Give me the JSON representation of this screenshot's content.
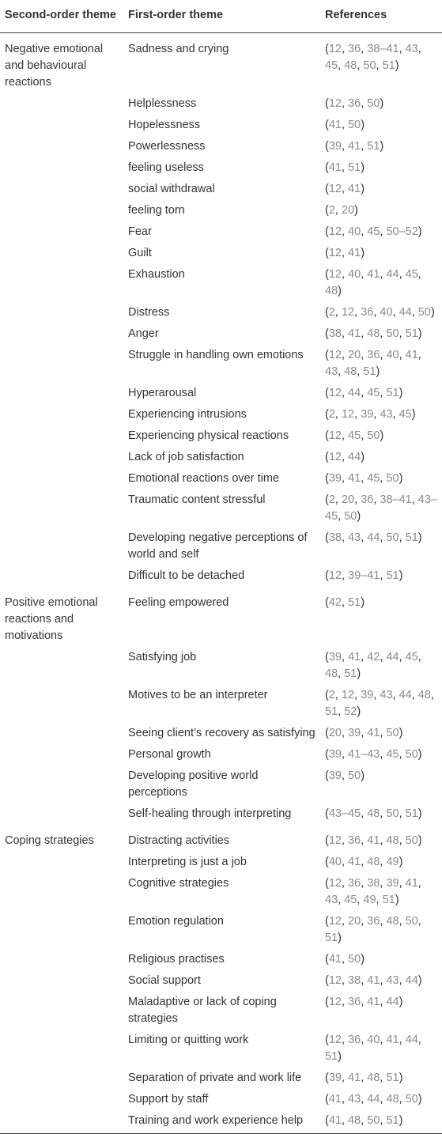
{
  "headers": {
    "second_order": "Second-order theme",
    "first_order": "First-order theme",
    "references": "References"
  },
  "groups": [
    {
      "theme": "Negative emotional and behavioural reactions",
      "rows": [
        {
          "first": "Sadness and crying",
          "refs": [
            "12",
            "36",
            "38–41",
            "43",
            "45",
            "48",
            "50",
            "51"
          ]
        },
        {
          "first": "Helplessness",
          "refs": [
            "12",
            "36",
            "50"
          ]
        },
        {
          "first": "Hopelessness",
          "refs": [
            "41",
            "50"
          ]
        },
        {
          "first": "Powerlessness",
          "refs": [
            "39",
            "41",
            "51"
          ]
        },
        {
          "first": "feeling useless",
          "refs": [
            "41",
            "51"
          ]
        },
        {
          "first": "social withdrawal",
          "refs": [
            "12",
            "41"
          ]
        },
        {
          "first": "feeling torn",
          "refs": [
            "2",
            "20"
          ]
        },
        {
          "first": "Fear",
          "refs": [
            "12",
            "40",
            "45",
            "50–52"
          ]
        },
        {
          "first": "Guilt",
          "refs": [
            "12",
            "41"
          ]
        },
        {
          "first": "Exhaustion",
          "refs": [
            "12",
            "40",
            "41",
            "44",
            "45",
            "48"
          ]
        },
        {
          "first": "Distress",
          "refs": [
            "2",
            "12",
            "36",
            "40",
            "44",
            "50"
          ]
        },
        {
          "first": "Anger",
          "refs": [
            "38",
            "41",
            "48",
            "50",
            "51"
          ]
        },
        {
          "first": "Struggle in handling own emotions",
          "refs": [
            "12",
            "20",
            "36",
            "40",
            "41",
            "43",
            "48",
            "51"
          ]
        },
        {
          "first": "Hyperarousal",
          "refs": [
            "12",
            "44",
            "45",
            "51"
          ]
        },
        {
          "first": "Experiencing intrusions",
          "refs": [
            "2",
            "12",
            "39",
            "43",
            "45"
          ]
        },
        {
          "first": "Experiencing physical reactions",
          "refs": [
            "12",
            "45",
            "50"
          ]
        },
        {
          "first": "Lack of job satisfaction",
          "refs": [
            "12",
            "44"
          ]
        },
        {
          "first": "Emotional reactions over time",
          "refs": [
            "39",
            "41",
            "45",
            "50"
          ]
        },
        {
          "first": "Traumatic content stressful",
          "refs": [
            "2",
            "20",
            "36",
            "38–41",
            "43–45",
            "50"
          ]
        },
        {
          "first": "Developing negative perceptions of world and self",
          "refs": [
            "38",
            "43",
            "44",
            "50",
            "51"
          ]
        },
        {
          "first": "Difficult to be detached",
          "refs": [
            "12",
            "39–41",
            "51"
          ]
        }
      ]
    },
    {
      "theme": "Positive emotional reactions and motivations",
      "rows": [
        {
          "first": "Feeling empowered",
          "refs": [
            "42",
            "51"
          ]
        },
        {
          "first": "Satisfying job",
          "refs": [
            "39",
            "41",
            "42",
            "44",
            "45",
            "48",
            "51"
          ]
        },
        {
          "first": "Motives to be an interpreter",
          "refs": [
            "2",
            "12",
            "39",
            "43",
            "44",
            "48",
            "51",
            "52"
          ]
        },
        {
          "first": "Seeing client’s recovery as satisfying",
          "refs": [
            "20",
            "39",
            "41",
            "50"
          ]
        },
        {
          "first": "Personal growth",
          "refs": [
            "39",
            "41–43",
            "45",
            "50"
          ]
        },
        {
          "first": "Developing positive world perceptions",
          "refs": [
            "39",
            "50"
          ]
        },
        {
          "first": "Self-healing through interpreting",
          "refs": [
            "43–45",
            "48",
            "50",
            "51"
          ]
        }
      ]
    },
    {
      "theme": "Coping strategies",
      "rows": [
        {
          "first": "Distracting activities",
          "refs": [
            "12",
            "36",
            "41",
            "48",
            "50"
          ]
        },
        {
          "first": "Interpreting is just a job",
          "refs": [
            "40",
            "41",
            "48",
            "49"
          ]
        },
        {
          "first": "Cognitive strategies",
          "refs": [
            "12",
            "36",
            "38",
            "39",
            "41",
            "43",
            "45",
            "49",
            "51"
          ]
        },
        {
          "first": "Emotion regulation",
          "refs": [
            "12",
            "20",
            "36",
            "48",
            "50",
            "51"
          ]
        },
        {
          "first": "Religious practises",
          "refs": [
            "41",
            "50"
          ]
        },
        {
          "first": "Social support",
          "refs": [
            "12",
            "38",
            "41",
            "43",
            "44"
          ]
        },
        {
          "first": "Maladaptive or lack of coping strategies",
          "refs": [
            "12",
            "36",
            "41",
            "44"
          ]
        },
        {
          "first": "Limiting or quitting work",
          "refs": [
            "12",
            "36",
            "40",
            "41",
            "44",
            "51"
          ]
        },
        {
          "first": "Separation of private and work life",
          "refs": [
            "39",
            "41",
            "48",
            "51"
          ]
        },
        {
          "first": "Support by staff",
          "refs": [
            "41",
            "43",
            "44",
            "48",
            "50"
          ]
        },
        {
          "first": "Training and work experience help",
          "refs": [
            "41",
            "48",
            "50",
            "51"
          ]
        }
      ]
    }
  ]
}
